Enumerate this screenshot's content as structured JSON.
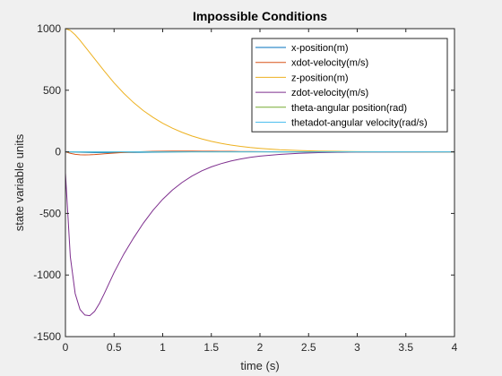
{
  "chart_data": {
    "type": "line",
    "title": "Impossible Conditions",
    "xlabel": "time (s)",
    "ylabel": "state variable units",
    "xlim": [
      0,
      4
    ],
    "ylim": [
      -1500,
      1000
    ],
    "x_ticks": [
      0,
      0.5,
      1,
      1.5,
      2,
      2.5,
      3,
      3.5,
      4
    ],
    "x_tick_labels": [
      "0",
      "0.5",
      "1",
      "1.5",
      "2",
      "2.5",
      "3",
      "3.5",
      "4"
    ],
    "y_ticks": [
      -1500,
      -1000,
      -500,
      0,
      500,
      1000
    ],
    "y_tick_labels": [
      "-1500",
      "-1000",
      "-500",
      "0",
      "500",
      "1000"
    ],
    "grid": false,
    "legend_position": "top-right",
    "x": [
      0,
      0.05,
      0.1,
      0.15,
      0.2,
      0.25,
      0.3,
      0.35,
      0.4,
      0.5,
      0.6,
      0.7,
      0.8,
      0.9,
      1.0,
      1.1,
      1.2,
      1.3,
      1.4,
      1.5,
      1.6,
      1.7,
      1.8,
      1.9,
      2.0,
      2.2,
      2.4,
      2.6,
      2.8,
      3.0,
      3.5,
      4.0
    ],
    "series": [
      {
        "name": "x-position(m)",
        "color": "#0072BD",
        "values": [
          0,
          -1,
          -2,
          -3,
          -4,
          -5,
          -6,
          -6,
          -6,
          -6,
          -5,
          -5,
          -4,
          -3,
          -2,
          -1,
          0,
          1,
          1,
          2,
          2,
          2,
          1,
          1,
          1,
          0,
          0,
          0,
          0,
          0,
          0,
          0
        ]
      },
      {
        "name": "xdot-velocity(m/s)",
        "color": "#D95319",
        "values": [
          0,
          -12,
          -20,
          -24,
          -25,
          -24,
          -22,
          -19,
          -16,
          -10,
          -5,
          -1,
          2,
          4,
          5,
          6,
          6,
          6,
          5,
          5,
          4,
          4,
          3,
          3,
          2,
          1,
          1,
          0,
          0,
          0,
          0,
          0
        ]
      },
      {
        "name": "z-position(m)",
        "color": "#EDB120",
        "values": [
          1000,
          985,
          950,
          905,
          855,
          805,
          755,
          705,
          655,
          560,
          475,
          400,
          335,
          280,
          232,
          192,
          158,
          129,
          105,
          85,
          69,
          55,
          44,
          35,
          28,
          17,
          11,
          6,
          4,
          2,
          0,
          0
        ]
      },
      {
        "name": "zdot-velocity(m/s)",
        "color": "#7E2F8E",
        "values": [
          -170,
          -850,
          -1150,
          -1280,
          -1325,
          -1330,
          -1295,
          -1230,
          -1150,
          -980,
          -830,
          -700,
          -580,
          -475,
          -385,
          -310,
          -248,
          -197,
          -155,
          -122,
          -96,
          -75,
          -58,
          -45,
          -35,
          -21,
          -12,
          -7,
          -4,
          -2,
          -1,
          0
        ]
      },
      {
        "name": "theta-angular position(rad)",
        "color": "#77AC30",
        "values": [
          0,
          0,
          0,
          0,
          0,
          0,
          0,
          0,
          0,
          0,
          0,
          0,
          0,
          0,
          0,
          0,
          0,
          0,
          0,
          0,
          0,
          0,
          0,
          0,
          0,
          0,
          0,
          0,
          0,
          0,
          0,
          0
        ]
      },
      {
        "name": "thetadot-angular velocity(rad/s)",
        "color": "#4DBEEE",
        "values": [
          0,
          0,
          0,
          0,
          0,
          0,
          0,
          0,
          0,
          0,
          0,
          0,
          0,
          0,
          0,
          0,
          0,
          0,
          0,
          0,
          0,
          0,
          0,
          0,
          0,
          0,
          0,
          0,
          0,
          0,
          0,
          0
        ]
      }
    ]
  }
}
